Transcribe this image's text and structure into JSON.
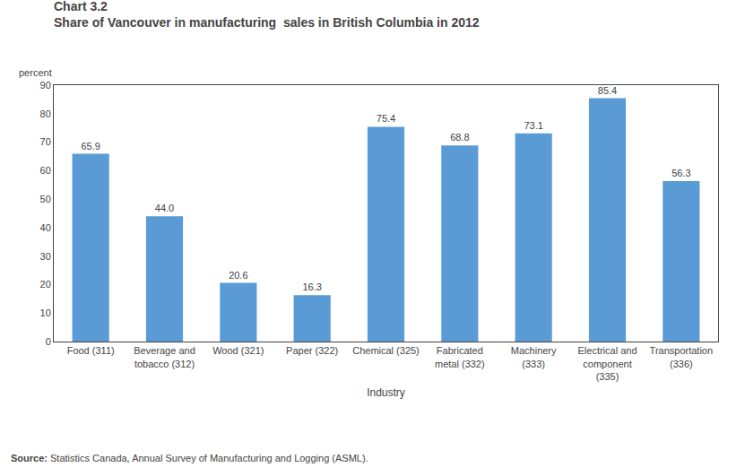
{
  "chart_data": {
    "type": "bar",
    "title": "Chart 3.2",
    "subtitle": "Share of Vancouver in manufacturing  sales in British Columbia in 2012",
    "ylabel": "percent",
    "xlabel": "Industry",
    "annotations": [
      "Source: Statistics Canada, Annual Survey of Manufacturing and Logging (ASML)."
    ],
    "categories": [
      "Food (311)",
      "Beverage and\ntobacco (312)",
      "Wood (321)",
      "Paper (322)",
      "Chemical (325)",
      "Fabricated\nmetal (332)",
      "Machinery\n(333)",
      "Electrical and\ncomponent\n(335)",
      "Transportation\n(336)"
    ],
    "values": [
      65.9,
      44.0,
      20.6,
      16.3,
      75.4,
      68.8,
      73.1,
      85.4,
      56.3
    ],
    "value_labels": [
      "65.9",
      "44.0",
      "20.6",
      "16.3",
      "75.4",
      "68.8",
      "73.1",
      "85.4",
      "56.3"
    ],
    "data_labels": true,
    "color": "#5B9BD5",
    "ylim": [
      0,
      90
    ],
    "yticks": [
      0,
      10,
      20,
      30,
      40,
      50,
      60,
      70,
      80,
      90
    ],
    "grid": false
  }
}
